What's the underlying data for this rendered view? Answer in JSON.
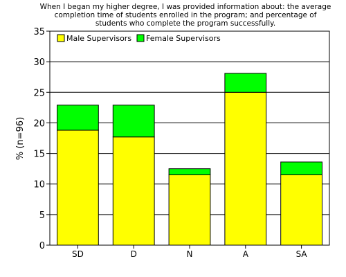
{
  "chart_data": {
    "type": "bar",
    "stacked": true,
    "title_lines": [
      "When I began my higher degree, I was provided information about: the average",
      "completion time of students enrolled in the program; and percentage of",
      "students who complete the program successfully."
    ],
    "xlabel": "",
    "ylabel": "% (n=96)",
    "ylim": [
      0,
      35
    ],
    "yticks": [
      "0",
      "5",
      "10",
      "15",
      "20",
      "25",
      "30",
      "35"
    ],
    "grid": true,
    "legend_position": "top-left",
    "categories": [
      "SD",
      "D",
      "N",
      "A",
      "SA"
    ],
    "series": [
      {
        "name": "Male Supervisors",
        "color": "#ffff00",
        "values": [
          18.8,
          17.7,
          11.5,
          25.0,
          11.5
        ]
      },
      {
        "name": "Female Supervisors",
        "color": "#00ff00",
        "values": [
          4.1,
          5.2,
          1.0,
          3.1,
          2.1
        ]
      }
    ]
  }
}
